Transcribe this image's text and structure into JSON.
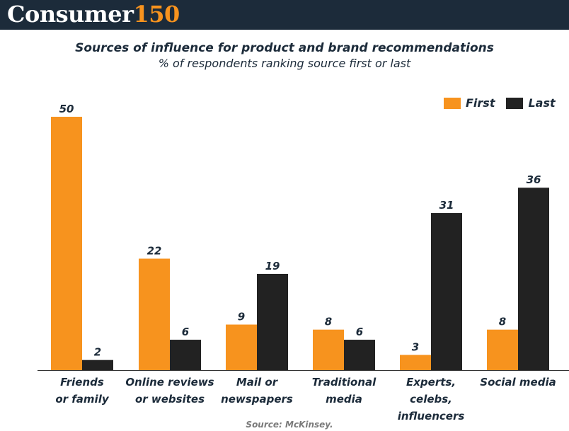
{
  "logo": {
    "word": "Consumer",
    "number": "150"
  },
  "colors": {
    "first": "#f7931e",
    "last": "#222222",
    "header_bg": "#1c2b3a",
    "text": "#1c2b3a"
  },
  "source": "Source: McKinsey.",
  "chart_data": {
    "type": "bar",
    "title": "Sources of influence for product and brand recommendations",
    "subtitle": "% of respondents ranking source first or last",
    "categories": [
      [
        "Friends",
        "or family"
      ],
      [
        "Online reviews",
        "or websites"
      ],
      [
        "Mail or",
        "newspapers"
      ],
      [
        "Traditional",
        "media"
      ],
      [
        "Experts,",
        "celebs,",
        "influencers"
      ],
      [
        "Social media"
      ]
    ],
    "series": [
      {
        "name": "First",
        "values": [
          50,
          22,
          9,
          8,
          3,
          8
        ]
      },
      {
        "name": "Last",
        "values": [
          2,
          6,
          19,
          6,
          31,
          36
        ]
      }
    ],
    "ylim": [
      0,
      50
    ],
    "grid": false,
    "legend_position": "top-right",
    "data_labels": true
  }
}
